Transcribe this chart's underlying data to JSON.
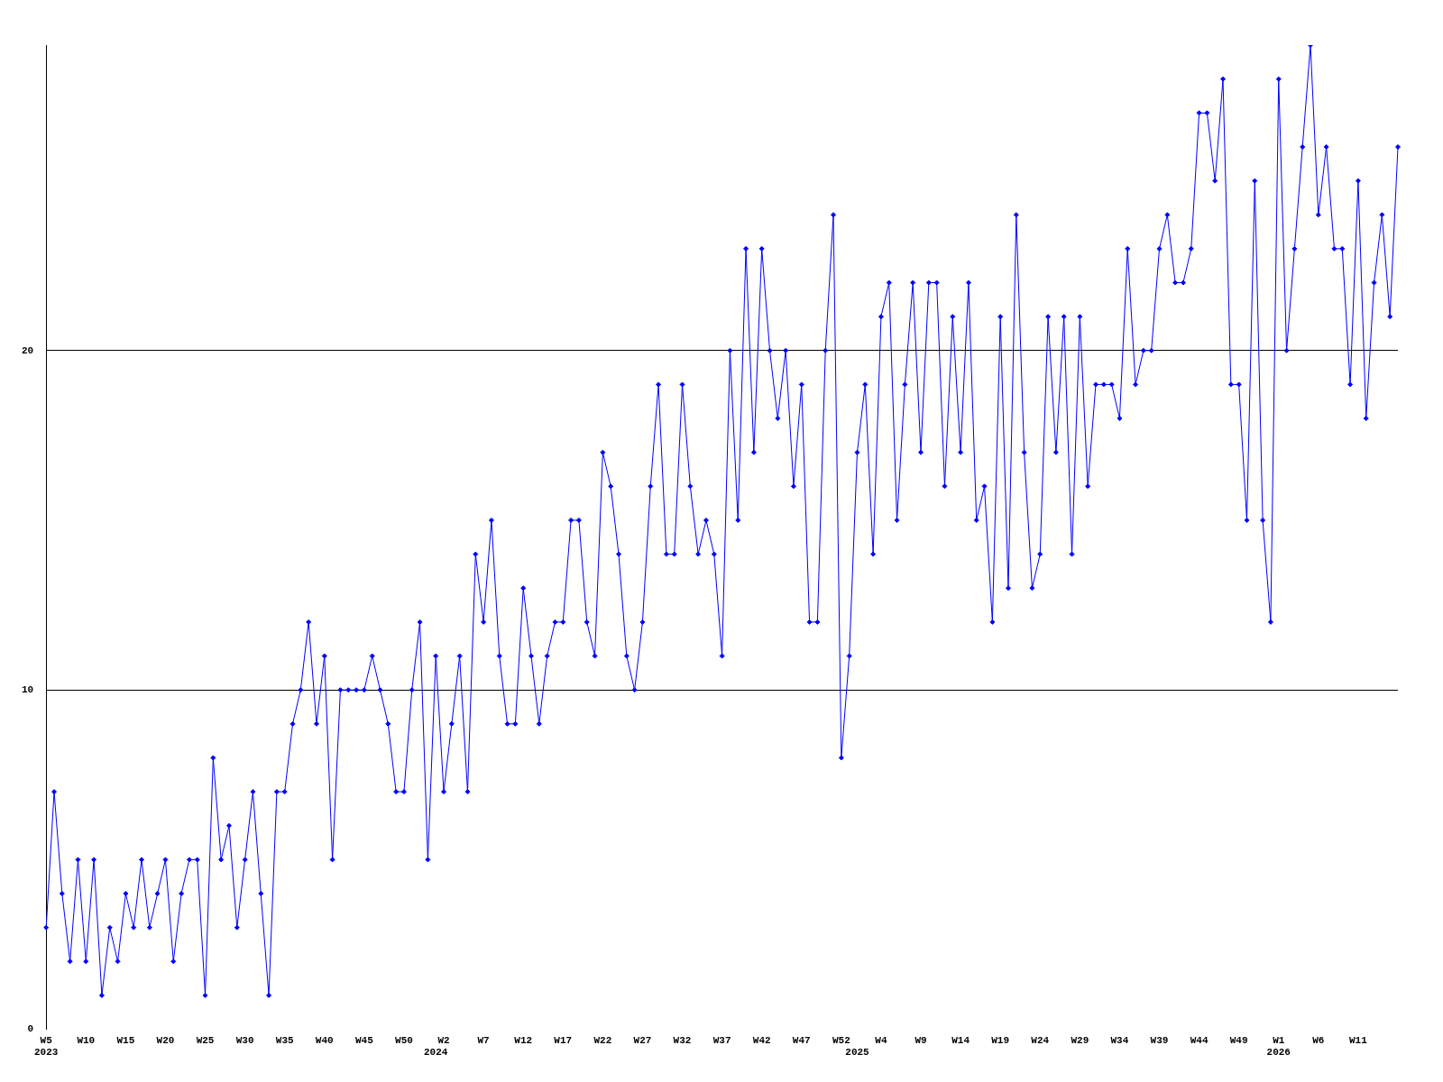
{
  "chart_data": {
    "type": "line",
    "categories": [
      "W5\n2023",
      null,
      null,
      null,
      null,
      "W10",
      null,
      null,
      null,
      null,
      "W15",
      null,
      null,
      null,
      null,
      "W20",
      null,
      null,
      null,
      null,
      "W25",
      null,
      null,
      null,
      null,
      "W30",
      null,
      null,
      null,
      null,
      "W35",
      null,
      null,
      null,
      null,
      "W40",
      null,
      null,
      null,
      null,
      "W45",
      null,
      null,
      null,
      null,
      "W50",
      null,
      null,
      null,
      "\n2024",
      "W2",
      null,
      null,
      null,
      null,
      "W7",
      null,
      null,
      null,
      null,
      "W12",
      null,
      null,
      null,
      null,
      "W17",
      null,
      null,
      null,
      null,
      "W22",
      null,
      null,
      null,
      null,
      "W27",
      null,
      null,
      null,
      null,
      "W32",
      null,
      null,
      null,
      null,
      "W37",
      null,
      null,
      null,
      null,
      "W42",
      null,
      null,
      null,
      null,
      "W47",
      null,
      null,
      null,
      null,
      "W52",
      null,
      "\n2025",
      null,
      null,
      "W4",
      null,
      null,
      null,
      null,
      "W9",
      null,
      null,
      null,
      null,
      "W14",
      null,
      null,
      null,
      null,
      "W19",
      null,
      null,
      null,
      null,
      "W24",
      null,
      null,
      null,
      null,
      "W29",
      null,
      null,
      null,
      null,
      "W34",
      null,
      null,
      null,
      null,
      "W39",
      null,
      null,
      null,
      null,
      "W44",
      null,
      null,
      null,
      null,
      "W49",
      null,
      null,
      null,
      null,
      "W1\n2026",
      null,
      null,
      null,
      null,
      "W6",
      null,
      null,
      null,
      null,
      "W11",
      null,
      null,
      null,
      null,
      null
    ],
    "series": [
      {
        "color": "#0000ff",
        "values": [
          3,
          7,
          4,
          2,
          5,
          2,
          5,
          1,
          3,
          2,
          4,
          3,
          5,
          3,
          4,
          5,
          2,
          4,
          5,
          5,
          1,
          8,
          5,
          6,
          3,
          5,
          7,
          4,
          1,
          7,
          7,
          9,
          10,
          12,
          9,
          11,
          5,
          10,
          10,
          10,
          10,
          11,
          10,
          9,
          7,
          7,
          10,
          12,
          5,
          11,
          7,
          9,
          11,
          7,
          14,
          12,
          15,
          11,
          9,
          9,
          13,
          11,
          9,
          11,
          12,
          12,
          15,
          15,
          12,
          11,
          17,
          16,
          14,
          11,
          10,
          12,
          16,
          19,
          14,
          14,
          19,
          16,
          14,
          15,
          14,
          11,
          20,
          15,
          23,
          17,
          23,
          20,
          18,
          20,
          16,
          19,
          12,
          12,
          20,
          24,
          8,
          11,
          17,
          19,
          14,
          21,
          22,
          15,
          19,
          22,
          17,
          22,
          22,
          16,
          21,
          17,
          22,
          15,
          16,
          12,
          21,
          13,
          24,
          17,
          13,
          14,
          21,
          17,
          21,
          14,
          21,
          16,
          19,
          19,
          19,
          18,
          23,
          19,
          20,
          20,
          23,
          24,
          22,
          22,
          23,
          27,
          27,
          25,
          28,
          19,
          19,
          15,
          25,
          15,
          12,
          28,
          20,
          23,
          26,
          29,
          24,
          26,
          23,
          23,
          19,
          25,
          18,
          22,
          24,
          21,
          26
        ]
      }
    ],
    "ylim": [
      0,
      29
    ],
    "yticks": [
      0,
      10,
      20
    ],
    "grid": "y",
    "marker": "diamond",
    "line_style": "solid"
  }
}
